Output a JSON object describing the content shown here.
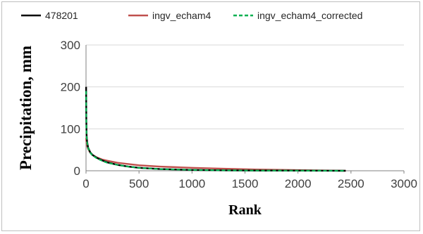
{
  "chart_data": {
    "type": "line",
    "xlabel": "Rank",
    "ylabel": "Precipitation, mm",
    "xlim": [
      0,
      3000
    ],
    "ylim": [
      0,
      300
    ],
    "xticks": [
      0,
      500,
      1000,
      1500,
      2000,
      2500,
      3000
    ],
    "yticks": [
      0,
      100,
      200,
      300
    ],
    "grid": "horizontal",
    "legend_position": "top",
    "series": [
      {
        "name": "478201",
        "color": "#000000",
        "style": "solid",
        "x": [
          1,
          3,
          5,
          10,
          20,
          40,
          60,
          100,
          150,
          200,
          300,
          400,
          500,
          700,
          1000,
          1300,
          1600,
          2000,
          2300,
          2450
        ],
        "y": [
          200,
          120,
          88,
          70,
          55,
          44,
          38,
          31,
          25,
          20,
          14,
          10,
          7,
          4,
          2,
          1,
          0.5,
          0.3,
          0.1,
          0
        ]
      },
      {
        "name": "ingv_echam4",
        "color": "#c0504d",
        "style": "solid",
        "x": [
          1,
          3,
          5,
          10,
          20,
          40,
          60,
          100,
          150,
          200,
          300,
          400,
          500,
          700,
          1000,
          1300,
          1600,
          2000,
          2300,
          2450
        ],
        "y": [
          78,
          72,
          68,
          60,
          52,
          43,
          38,
          32,
          27,
          24,
          19,
          16,
          13,
          10,
          7,
          5,
          3,
          1.5,
          0.5,
          0
        ]
      },
      {
        "name": "ingv_echam4_corrected",
        "color": "#00b050",
        "style": "dashed",
        "x": [
          1,
          3,
          5,
          10,
          20,
          40,
          60,
          100,
          150,
          200,
          300,
          400,
          500,
          700,
          1000,
          1300,
          1600,
          2000,
          2300,
          2450
        ],
        "y": [
          190,
          115,
          85,
          68,
          54,
          43,
          37,
          30,
          24,
          19,
          14,
          10,
          7,
          4,
          2,
          1,
          0.5,
          0.3,
          0.1,
          0
        ]
      }
    ]
  }
}
